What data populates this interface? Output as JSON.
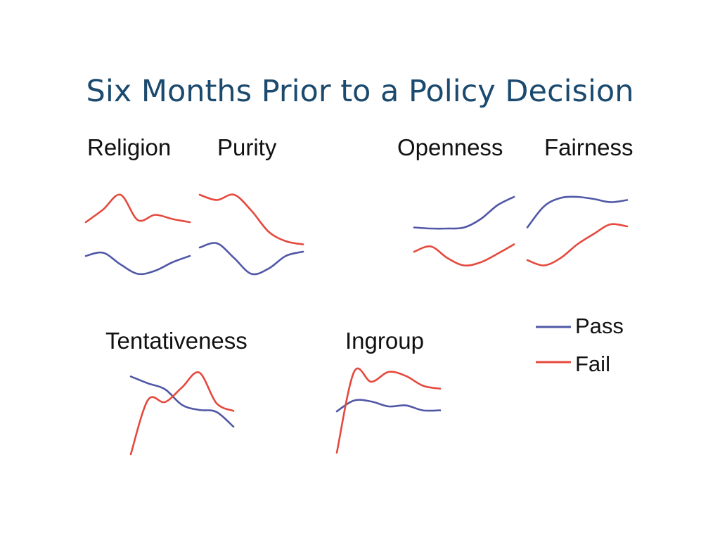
{
  "slide": {
    "title": "Six Months Prior to a Policy Decision"
  },
  "legend": {
    "pass_label": "Pass",
    "fail_label": "Fail"
  },
  "colors": {
    "pass": "#5058a6",
    "fail": "#e5493d",
    "title": "#1b4a6e"
  },
  "chart_data": [
    {
      "type": "line",
      "title": "Religion",
      "x": [
        0,
        1,
        2,
        3,
        4,
        5,
        6
      ],
      "series": [
        {
          "name": "Pass",
          "values": [
            3.2,
            3.5,
            2.4,
            1.5,
            1.8,
            2.6,
            3.2
          ]
        },
        {
          "name": "Fail",
          "values": [
            6.4,
            7.6,
            9.0,
            6.6,
            7.1,
            6.7,
            6.4
          ]
        }
      ],
      "ylim": [
        0,
        10
      ]
    },
    {
      "type": "line",
      "title": "Purity",
      "x": [
        0,
        1,
        2,
        3,
        4,
        5,
        6
      ],
      "series": [
        {
          "name": "Pass",
          "values": [
            4.0,
            4.4,
            3.0,
            1.5,
            2.0,
            3.2,
            3.6
          ]
        },
        {
          "name": "Fail",
          "values": [
            9.0,
            8.5,
            9.0,
            7.5,
            5.5,
            4.6,
            4.3
          ]
        }
      ],
      "ylim": [
        0,
        10
      ]
    },
    {
      "type": "line",
      "title": "Openness",
      "x": [
        0,
        1,
        2,
        3,
        4,
        5,
        6
      ],
      "series": [
        {
          "name": "Pass",
          "values": [
            5.9,
            5.8,
            5.8,
            5.9,
            6.7,
            8.0,
            8.8
          ]
        },
        {
          "name": "Fail",
          "values": [
            3.6,
            4.1,
            3.0,
            2.3,
            2.6,
            3.4,
            4.3
          ]
        }
      ],
      "ylim": [
        0,
        10
      ]
    },
    {
      "type": "line",
      "title": "Fairness",
      "x": [
        0,
        1,
        2,
        3,
        4,
        5,
        6
      ],
      "series": [
        {
          "name": "Pass",
          "values": [
            5.9,
            7.9,
            8.7,
            8.8,
            8.6,
            8.3,
            8.5
          ]
        },
        {
          "name": "Fail",
          "values": [
            2.8,
            2.3,
            3.0,
            4.3,
            5.3,
            6.2,
            6.0
          ]
        }
      ],
      "ylim": [
        0,
        10
      ]
    },
    {
      "type": "line",
      "title": "Tentativeness",
      "x": [
        0,
        1,
        2,
        3,
        4,
        5,
        6
      ],
      "series": [
        {
          "name": "Pass",
          "values": [
            8.9,
            8.2,
            7.6,
            6.0,
            5.5,
            5.3,
            3.8
          ]
        },
        {
          "name": "Fail",
          "values": [
            1.0,
            6.5,
            6.3,
            7.8,
            9.3,
            6.2,
            5.4
          ]
        }
      ],
      "ylim": [
        0,
        10
      ]
    },
    {
      "type": "line",
      "title": "Ingroup",
      "x": [
        0,
        1,
        2,
        3,
        4,
        5,
        6
      ],
      "series": [
        {
          "name": "Pass",
          "values": [
            5.0,
            6.1,
            6.0,
            5.5,
            5.6,
            5.1,
            5.1
          ]
        },
        {
          "name": "Fail",
          "values": [
            0.8,
            9.0,
            8.0,
            9.0,
            8.6,
            7.6,
            7.3
          ]
        }
      ],
      "ylim": [
        0,
        10
      ]
    }
  ]
}
